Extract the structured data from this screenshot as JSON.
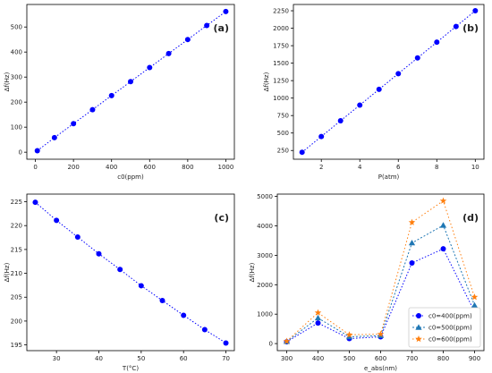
{
  "chart_data": [
    {
      "panel": "(a)",
      "type": "line",
      "xlabel": "c0(ppm)",
      "ylabel": "Δf(Hz)",
      "xlim": [
        -45,
        1045
      ],
      "ylim": [
        -28,
        590
      ],
      "xticks": [
        0,
        200,
        400,
        600,
        800,
        1000
      ],
      "yticks": [
        0,
        100,
        200,
        300,
        400,
        500
      ],
      "series": [
        {
          "color": "#0000ff",
          "marker": "circle",
          "x": [
            10,
            100,
            200,
            300,
            400,
            500,
            600,
            700,
            800,
            900,
            1000
          ],
          "y": [
            6,
            58,
            114,
            170,
            226,
            282,
            338,
            394,
            450,
            506,
            562
          ]
        }
      ]
    },
    {
      "panel": "(b)",
      "type": "line",
      "xlabel": "P(atm)",
      "ylabel": "Δf(Hz)",
      "xlim": [
        0.55,
        10.45
      ],
      "ylim": [
        125,
        2340
      ],
      "xticks": [
        2,
        4,
        6,
        8,
        10
      ],
      "yticks": [
        250,
        500,
        750,
        1000,
        1250,
        1500,
        1750,
        2000,
        2250
      ],
      "series": [
        {
          "color": "#0000ff",
          "marker": "circle",
          "x": [
            1,
            2,
            3,
            4,
            5,
            6,
            7,
            8,
            9,
            10
          ],
          "y": [
            225,
            450,
            675,
            900,
            1125,
            1350,
            1575,
            1800,
            2025,
            2250
          ]
        }
      ]
    },
    {
      "panel": "(c)",
      "type": "line",
      "xlabel": "T(°C)",
      "ylabel": "Δf(Hz)",
      "xlim": [
        23,
        72
      ],
      "ylim": [
        193.8,
        226.6
      ],
      "xticks": [
        30,
        40,
        50,
        60,
        70
      ],
      "yticks": [
        195,
        200,
        205,
        210,
        215,
        220,
        225
      ],
      "series": [
        {
          "color": "#0000ff",
          "marker": "circle",
          "x": [
            25,
            30,
            35,
            40,
            45,
            50,
            55,
            60,
            65,
            70
          ],
          "y": [
            224.9,
            221.1,
            217.6,
            214.1,
            210.8,
            207.4,
            204.3,
            201.2,
            198.2,
            195.4
          ]
        }
      ]
    },
    {
      "panel": "(d)",
      "type": "line",
      "xlabel": "e_abs(nm)",
      "ylabel": "Δf(Hz)",
      "xlim": [
        270,
        930
      ],
      "ylim": [
        -240,
        5080
      ],
      "xticks": [
        300,
        400,
        500,
        600,
        700,
        800,
        900
      ],
      "yticks": [
        0,
        1000,
        2000,
        3000,
        4000,
        5000
      ],
      "legend_position": "lower right",
      "series": [
        {
          "name": "c0=400(ppm)",
          "color": "#0000ff",
          "marker": "circle",
          "x": [
            300,
            400,
            500,
            600,
            700,
            800,
            900
          ],
          "y": [
            60,
            700,
            170,
            230,
            2740,
            3220,
            1080
          ]
        },
        {
          "name": "c0=500(ppm)",
          "color": "#1f77b4",
          "marker": "triangle",
          "x": [
            300,
            400,
            500,
            600,
            700,
            800,
            900
          ],
          "y": [
            70,
            870,
            230,
            270,
            3420,
            4020,
            1300
          ]
        },
        {
          "name": "c0=600(ppm)",
          "color": "#ff7f0e",
          "marker": "star",
          "x": [
            300,
            400,
            500,
            600,
            700,
            800,
            900
          ],
          "y": [
            80,
            1050,
            300,
            320,
            4120,
            4850,
            1580
          ]
        }
      ]
    }
  ]
}
